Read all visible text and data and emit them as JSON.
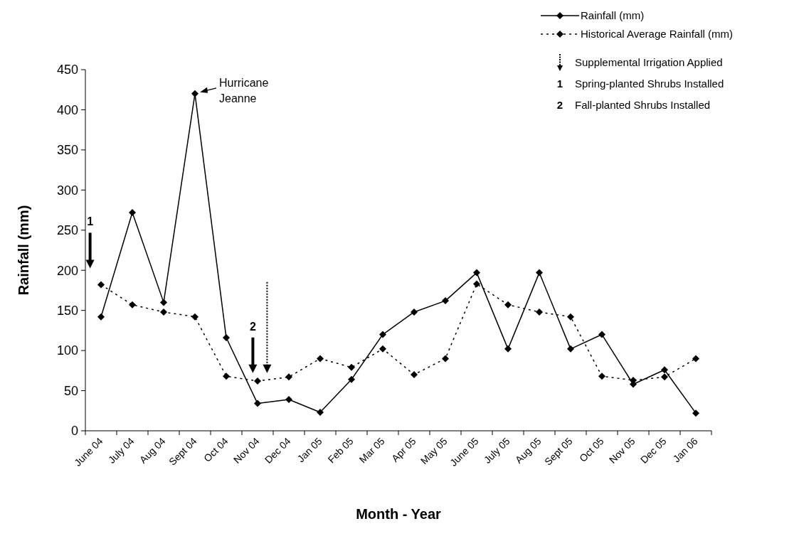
{
  "chart_data": {
    "type": "line",
    "xlabel": "Month - Year",
    "ylabel": "Rainfall (mm)",
    "categories": [
      "June 04",
      "July 04",
      "Aug 04",
      "Sept 04",
      "Oct 04",
      "Nov 04",
      "Dec 04",
      "Jan 05",
      "Feb 05",
      "Mar 05",
      "Apr 05",
      "May 05",
      "June 05",
      "July 05",
      "Aug 05",
      "Sept 05",
      "Oct 05",
      "Nov 05",
      "Dec 05",
      "Jan 06"
    ],
    "series": [
      {
        "name": "Rainfall (mm)",
        "color": "#000000",
        "line_style": "solid",
        "values": [
          142,
          272,
          160,
          420,
          116,
          34,
          39,
          23,
          64,
          120,
          148,
          162,
          197,
          102,
          197,
          102,
          120,
          58,
          76,
          22
        ]
      },
      {
        "name": "Historical Average Rainfall (mm)",
        "color": "#000000",
        "line_style": "dotted",
        "values": [
          182,
          157,
          148,
          142,
          68,
          62,
          67,
          90,
          79,
          102,
          70,
          90,
          183,
          157,
          148,
          142,
          68,
          63,
          67,
          90
        ]
      }
    ],
    "ylim": [
      0,
      450
    ],
    "yticks": [
      0,
      50,
      100,
      150,
      200,
      250,
      300,
      350,
      400,
      450
    ],
    "marker": "diamond",
    "grid": false,
    "legend": "top right",
    "annotations": [
      {
        "text": "Hurricane Jeanne",
        "x": "Sept 04",
        "y": 420
      },
      "1",
      "2",
      "Supplemental Irrigation Applied",
      "1 Spring-planted Shrubs Installed",
      "2 Fall-planted Shrubs Installed"
    ]
  }
}
